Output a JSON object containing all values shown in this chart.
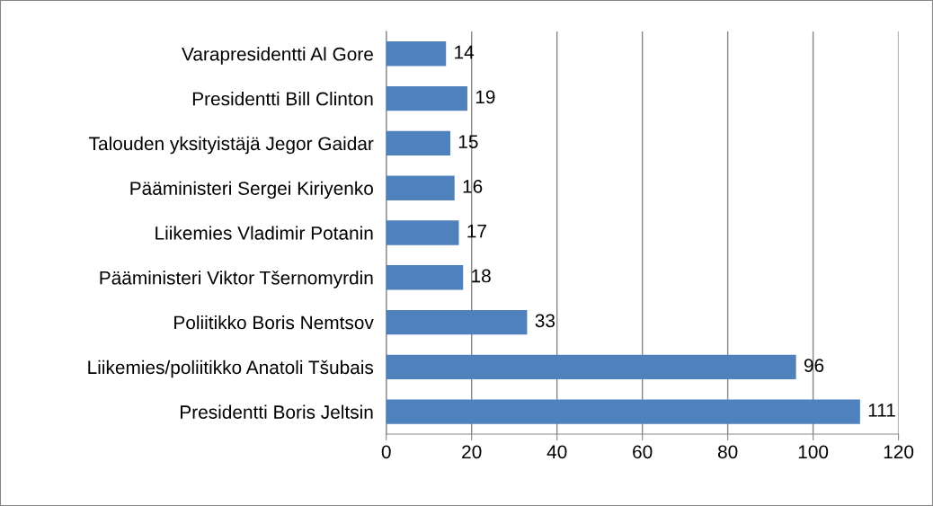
{
  "chart_data": {
    "type": "bar",
    "orientation": "horizontal",
    "categories": [
      "Varapresidentti Al Gore",
      "Presidentti Bill Clinton",
      "Talouden yksityistäjä Jegor Gaidar",
      "Pääministeri Sergei Kiriyenko",
      "Liikemies Vladimir Potanin",
      "Pääministeri Viktor Tšernomyrdin",
      "Poliitikko Boris Nemtsov",
      "Liikemies/poliitikko Anatoli Tšubais",
      "Presidentti Boris Jeltsin"
    ],
    "values": [
      14,
      19,
      15,
      16,
      17,
      18,
      33,
      96,
      111
    ],
    "color": "#4f81bd",
    "xlim": [
      0,
      120
    ],
    "xticks": [
      0,
      20,
      40,
      60,
      80,
      100,
      120
    ],
    "grid": "x",
    "data_labels": true
  }
}
